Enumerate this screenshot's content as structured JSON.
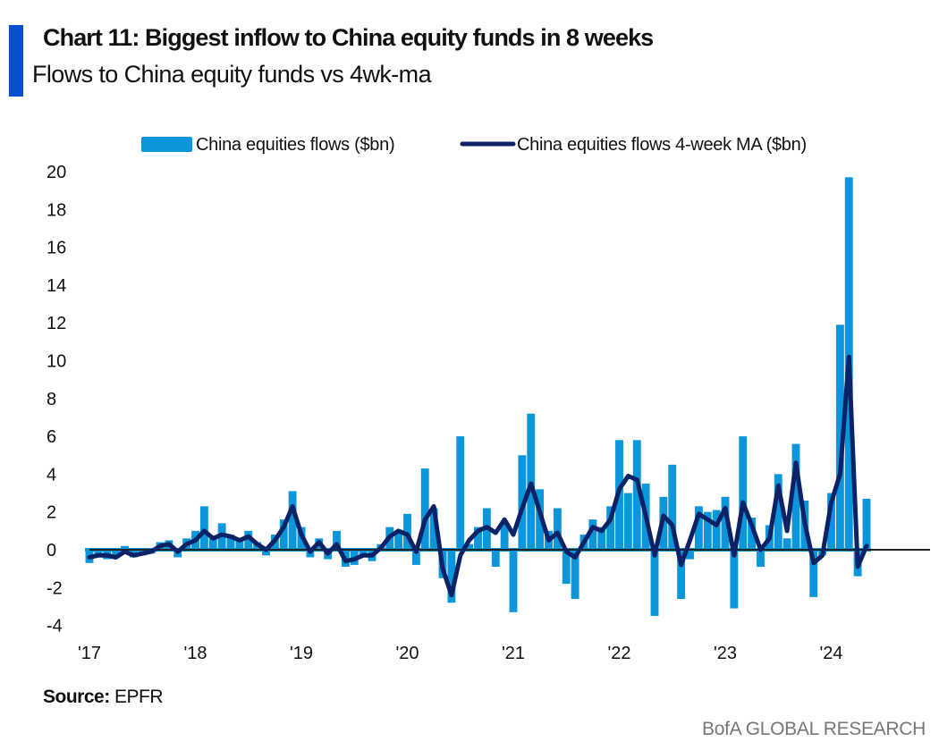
{
  "header": {
    "title": "Chart 11: Biggest inflow to China equity funds in 8 weeks",
    "subtitle": "Flows to China equity funds vs 4wk-ma",
    "accent_color": "#0a4fd1"
  },
  "footer": {
    "source_label": "Source:",
    "source_value": "EPFR",
    "brand": "BofA GLOBAL RESEARCH"
  },
  "chart_data": {
    "type": "bar",
    "title": "Chart 11: Biggest inflow to China equity funds in 8 weeks",
    "subtitle": "Flows to China equity funds vs 4wk-ma",
    "xlabel": "",
    "ylabel": "",
    "ylim": [
      -4,
      20
    ],
    "yticks": [
      "20",
      "18",
      "16",
      "14",
      "12",
      "10",
      "8",
      "6",
      "4",
      "2",
      "0",
      "-2",
      "-4"
    ],
    "ytick_values": [
      20,
      18,
      16,
      14,
      12,
      10,
      8,
      6,
      4,
      2,
      0,
      -2,
      -4
    ],
    "xticks": [
      "'17",
      "'18",
      "'19",
      "'20",
      "'21",
      "'22",
      "'23",
      "'24"
    ],
    "xtick_years": [
      2017,
      2018,
      2019,
      2020,
      2021,
      2022,
      2023,
      2024
    ],
    "grid": false,
    "legend_position": "top",
    "start_month": "2017-01",
    "series": [
      {
        "name": "China equities flows ($bn)",
        "kind": "bar",
        "color": "#0b96dc",
        "values": [
          -0.7,
          -0.4,
          -0.5,
          -0.3,
          0.2,
          -0.4,
          -0.3,
          -0.2,
          0.4,
          0.5,
          -0.4,
          0.6,
          1.0,
          2.3,
          0.6,
          1.4,
          0.8,
          0.5,
          1.0,
          0.4,
          -0.3,
          0.8,
          1.6,
          3.1,
          1.2,
          -0.4,
          0.6,
          -0.5,
          1.0,
          -0.9,
          -0.8,
          -0.3,
          -0.6,
          0.3,
          1.2,
          1.0,
          1.9,
          -0.8,
          4.3,
          2.2,
          -1.5,
          -2.8,
          6.0,
          0.3,
          1.2,
          2.2,
          -0.9,
          1.5,
          -3.3,
          5.0,
          7.2,
          3.2,
          1.0,
          2.2,
          -1.8,
          -2.6,
          0.8,
          1.6,
          1.2,
          2.3,
          5.8,
          3.0,
          5.8,
          3.5,
          -3.5,
          2.8,
          4.5,
          -2.6,
          -0.5,
          2.3,
          2.0,
          2.1,
          2.8,
          -3.1,
          6.0,
          1.7,
          -0.9,
          1.3,
          4.0,
          0.6,
          5.6,
          2.6,
          -2.5,
          -0.3,
          3.0,
          11.9,
          19.7,
          -1.4,
          2.7
        ]
      },
      {
        "name": "China equities flows 4-week MA ($bn)",
        "kind": "line",
        "color": "#0b2266",
        "values": [
          -0.4,
          -0.3,
          -0.3,
          -0.4,
          -0.1,
          -0.3,
          -0.2,
          -0.1,
          0.2,
          0.3,
          -0.1,
          0.3,
          0.5,
          1.0,
          0.6,
          0.8,
          0.7,
          0.5,
          0.7,
          0.3,
          0.0,
          0.5,
          1.2,
          2.3,
          0.8,
          -0.1,
          0.4,
          -0.2,
          0.3,
          -0.6,
          -0.5,
          -0.3,
          -0.3,
          0.1,
          0.7,
          1.0,
          0.8,
          -0.1,
          1.6,
          2.3,
          -1.0,
          -2.4,
          -0.3,
          0.5,
          1.0,
          1.2,
          0.9,
          1.6,
          0.8,
          2.2,
          3.5,
          2.0,
          0.5,
          0.9,
          -0.1,
          -0.4,
          0.4,
          1.2,
          1.0,
          1.6,
          3.2,
          3.9,
          3.7,
          1.8,
          -0.3,
          1.8,
          1.3,
          -0.8,
          0.5,
          1.9,
          1.6,
          1.3,
          2.2,
          -0.3,
          2.5,
          1.3,
          0.0,
          0.6,
          3.4,
          1.0,
          4.6,
          1.4,
          -0.7,
          -0.3,
          2.5,
          4.0,
          10.2,
          -0.9,
          0.2
        ]
      }
    ]
  }
}
